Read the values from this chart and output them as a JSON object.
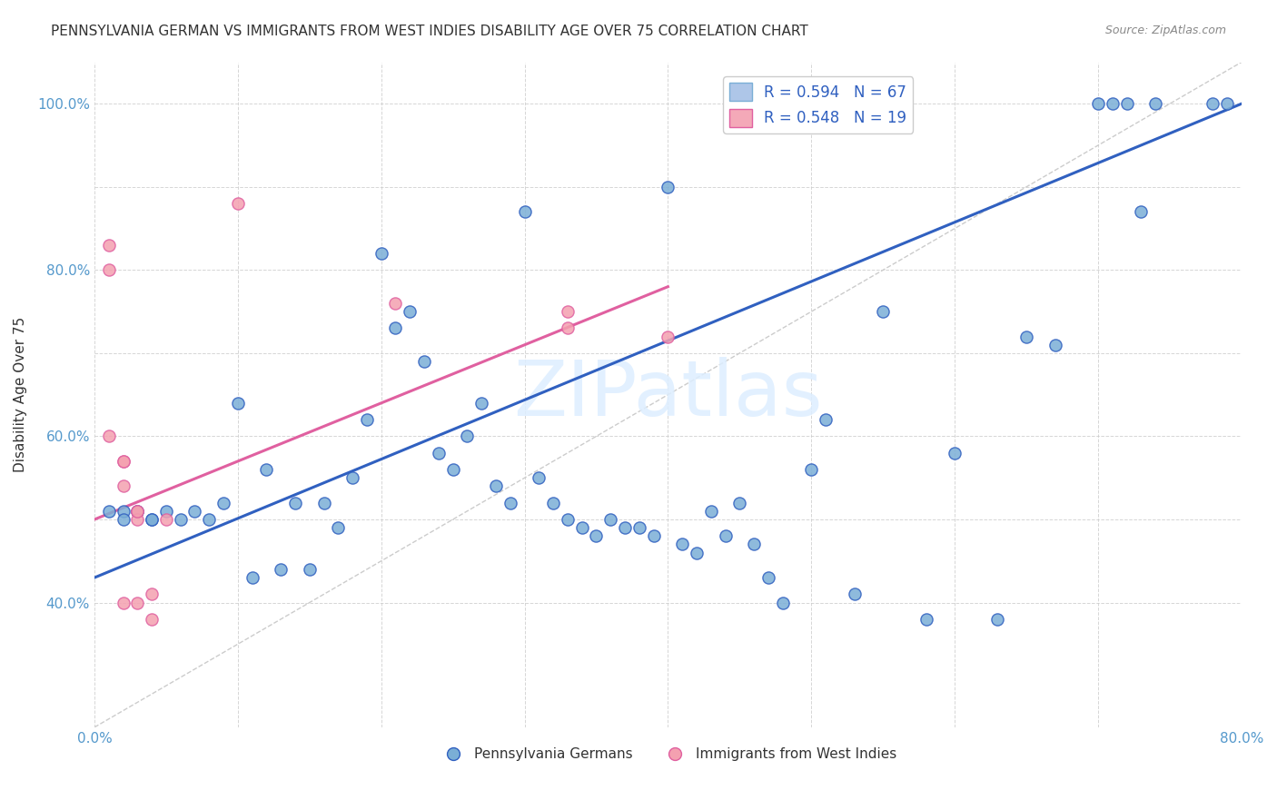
{
  "title": "PENNSYLVANIA GERMAN VS IMMIGRANTS FROM WEST INDIES DISABILITY AGE OVER 75 CORRELATION CHART",
  "source": "Source: ZipAtlas.com",
  "xlabel": "",
  "ylabel": "Disability Age Over 75",
  "xlim": [
    0.0,
    0.8
  ],
  "ylim": [
    0.25,
    1.05
  ],
  "x_ticks": [
    0.0,
    0.1,
    0.2,
    0.3,
    0.4,
    0.5,
    0.6,
    0.7,
    0.8
  ],
  "x_tick_labels": [
    "0.0%",
    "",
    "",
    "",
    "",
    "",
    "",
    "",
    "80.0%"
  ],
  "y_tick_labels": [
    "",
    "40.0%",
    "",
    "60.0%",
    "",
    "80.0%",
    "",
    "100.0%"
  ],
  "y_ticks": [
    0.25,
    0.4,
    0.5,
    0.6,
    0.7,
    0.8,
    0.9,
    1.0
  ],
  "legend_entries": [
    {
      "label": "R = 0.594   N = 67",
      "color": "#aec6e8"
    },
    {
      "label": "R = 0.548   N = 19",
      "color": "#f4a9b8"
    }
  ],
  "legend_labels_bottom": [
    "Pennsylvania Germans",
    "Immigrants from West Indies"
  ],
  "watermark": "ZIPatlas",
  "blue_scatter_x": [
    0.3,
    0.4,
    0.2,
    0.21,
    0.22,
    0.1,
    0.12,
    0.14,
    0.16,
    0.17,
    0.18,
    0.19,
    0.23,
    0.24,
    0.25,
    0.26,
    0.27,
    0.28,
    0.29,
    0.31,
    0.32,
    0.33,
    0.34,
    0.35,
    0.36,
    0.38,
    0.39,
    0.41,
    0.42,
    0.45,
    0.46,
    0.5,
    0.55,
    0.6,
    0.65,
    0.7,
    0.72,
    0.74,
    0.02,
    0.03,
    0.04,
    0.05,
    0.06,
    0.07,
    0.08,
    0.09,
    0.01,
    0.02,
    0.03,
    0.04,
    0.15,
    0.11,
    0.13,
    0.37,
    0.43,
    0.44,
    0.47,
    0.48,
    0.51,
    0.53,
    0.58,
    0.63,
    0.67,
    0.71,
    0.73,
    0.78,
    0.79
  ],
  "blue_scatter_y": [
    0.87,
    0.9,
    0.82,
    0.73,
    0.75,
    0.64,
    0.56,
    0.52,
    0.52,
    0.49,
    0.55,
    0.62,
    0.69,
    0.58,
    0.56,
    0.6,
    0.64,
    0.54,
    0.52,
    0.55,
    0.52,
    0.5,
    0.49,
    0.48,
    0.5,
    0.49,
    0.48,
    0.47,
    0.46,
    0.52,
    0.47,
    0.56,
    0.75,
    0.58,
    0.72,
    1.0,
    1.0,
    1.0,
    0.51,
    0.51,
    0.5,
    0.51,
    0.5,
    0.51,
    0.5,
    0.52,
    0.51,
    0.5,
    0.51,
    0.5,
    0.44,
    0.43,
    0.44,
    0.49,
    0.51,
    0.48,
    0.43,
    0.4,
    0.62,
    0.41,
    0.38,
    0.38,
    0.71,
    1.0,
    0.87,
    1.0,
    1.0
  ],
  "pink_scatter_x": [
    0.01,
    0.01,
    0.01,
    0.02,
    0.02,
    0.03,
    0.03,
    0.04,
    0.04,
    0.1,
    0.21,
    0.33,
    0.33,
    0.4,
    0.03,
    0.05,
    0.02,
    0.03,
    0.02
  ],
  "pink_scatter_y": [
    0.83,
    0.8,
    0.6,
    0.57,
    0.57,
    0.51,
    0.5,
    0.41,
    0.38,
    0.88,
    0.76,
    0.75,
    0.73,
    0.72,
    0.51,
    0.5,
    0.4,
    0.4,
    0.54
  ],
  "blue_line_x": [
    0.0,
    0.8
  ],
  "blue_line_y": [
    0.43,
    1.0
  ],
  "pink_line_x": [
    0.0,
    0.4
  ],
  "pink_line_y": [
    0.5,
    0.78
  ],
  "identity_line_x": [
    0.0,
    0.8
  ],
  "identity_line_y": [
    0.25,
    1.05
  ],
  "title_fontsize": 11,
  "axis_color": "#aaaaaa",
  "blue_color": "#7aaed6",
  "pink_color": "#f4a0b0",
  "blue_line_color": "#3060c0",
  "pink_line_color": "#e060a0",
  "identity_line_color": "#cccccc"
}
